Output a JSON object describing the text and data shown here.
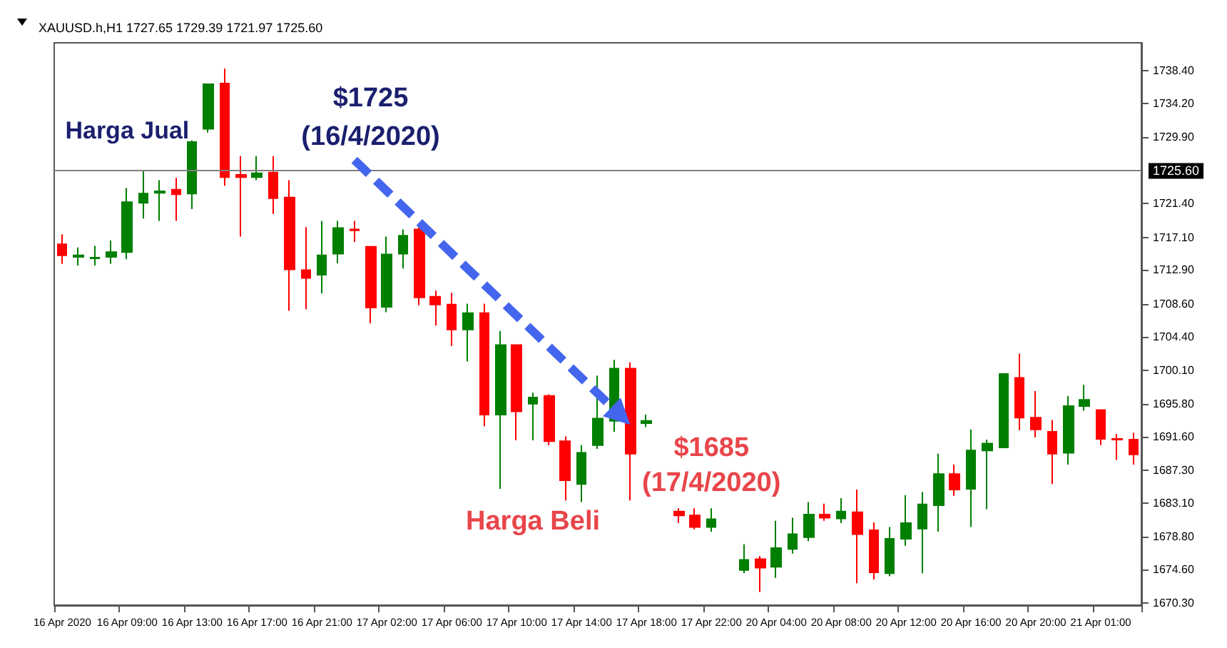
{
  "chart_data": {
    "type": "candlestick",
    "title": "XAUUSD.h,H1 1727.65 1729.39 1721.97 1725.60",
    "categories": [
      "16 Apr 2020",
      null,
      null,
      null,
      "16 Apr 09:00",
      null,
      null,
      null,
      "16 Apr 13:00",
      null,
      null,
      null,
      "16 Apr 17:00",
      null,
      null,
      null,
      "16 Apr 21:00",
      null,
      null,
      null,
      "17 Apr 02:00",
      null,
      null,
      null,
      "17 Apr 06:00",
      null,
      null,
      null,
      "17 Apr 10:00",
      null,
      null,
      null,
      "17 Apr 14:00",
      null,
      null,
      null,
      "17 Apr 18:00",
      null,
      null,
      null,
      "17 Apr 22:00",
      null,
      null,
      null,
      "20 Apr 04:00",
      null,
      null,
      null,
      "20 Apr 08:00",
      null,
      null,
      null,
      "20 Apr 12:00",
      null,
      null,
      null,
      "20 Apr 16:00",
      null,
      null,
      null,
      "20 Apr 20:00",
      null,
      null,
      null,
      "21 Apr 01:00",
      null,
      null
    ],
    "ohlc": [
      [
        1716.2,
        1717.5,
        1713.7,
        1714.8
      ],
      [
        1714.6,
        1715.8,
        1713.5,
        1714.8
      ],
      [
        1714.4,
        1716.0,
        1713.5,
        1714.5
      ],
      [
        1714.6,
        1716.7,
        1713.7,
        1715.2
      ],
      [
        1715.2,
        1723.4,
        1714.3,
        1721.6
      ],
      [
        1721.5,
        1725.7,
        1719.5,
        1722.7
      ],
      [
        1722.8,
        1724.4,
        1719.2,
        1723.0
      ],
      [
        1723.2,
        1724.7,
        1719.2,
        1722.6
      ],
      [
        1722.7,
        1729.5,
        1720.7,
        1729.3
      ],
      [
        1731.0,
        1736.8,
        1730.5,
        1736.7
      ],
      [
        1736.8,
        1738.7,
        1723.7,
        1724.8
      ],
      [
        1725.1,
        1727.5,
        1717.2,
        1724.8
      ],
      [
        1724.8,
        1727.5,
        1724.4,
        1725.3
      ],
      [
        1725.4,
        1727.5,
        1720.1,
        1722.1
      ],
      [
        1722.2,
        1724.4,
        1707.7,
        1713.0
      ],
      [
        1712.9,
        1718.4,
        1707.9,
        1711.9
      ],
      [
        1712.3,
        1719.2,
        1709.9,
        1714.8
      ],
      [
        1715.0,
        1719.2,
        1713.8,
        1718.3
      ],
      [
        1718.1,
        1719.2,
        1716.5,
        1718.0
      ],
      [
        1715.9,
        1716.0,
        1706.1,
        1708.1
      ],
      [
        1708.2,
        1717.2,
        1707.5,
        1714.9
      ],
      [
        1715.0,
        1718.1,
        1713.1,
        1717.3
      ],
      [
        1718.1,
        1718.4,
        1708.4,
        1709.4
      ],
      [
        1709.5,
        1710.3,
        1705.8,
        1708.5
      ],
      [
        1708.5,
        1710.0,
        1703.2,
        1705.3
      ],
      [
        1705.3,
        1708.6,
        1701.2,
        1707.4
      ],
      [
        1707.4,
        1708.6,
        1692.9,
        1694.4
      ],
      [
        1694.4,
        1705.1,
        1684.9,
        1703.3
      ],
      [
        1703.3,
        1703.3,
        1691.1,
        1694.8
      ],
      [
        1695.8,
        1697.2,
        1691.1,
        1696.6
      ],
      [
        1696.8,
        1697.0,
        1690.5,
        1691.0
      ],
      [
        1691.0,
        1691.6,
        1683.4,
        1686.0
      ],
      [
        1685.5,
        1690.5,
        1683.2,
        1689.5
      ],
      [
        1690.5,
        1699.4,
        1690.0,
        1693.9
      ],
      [
        1693.6,
        1701.4,
        1692.2,
        1700.3
      ],
      [
        1700.3,
        1701.1,
        1683.4,
        1689.4
      ],
      [
        1693.3,
        1694.4,
        1692.8,
        1693.6
      ],
      null,
      [
        1682.0,
        1682.4,
        1680.5,
        1681.5
      ],
      [
        1681.5,
        1682.4,
        1679.7,
        1680.0
      ],
      [
        1680.0,
        1682.4,
        1679.4,
        1681.0
      ],
      null,
      [
        1674.5,
        1677.8,
        1674.1,
        1675.8
      ],
      [
        1675.9,
        1676.3,
        1671.7,
        1674.8
      ],
      [
        1674.9,
        1680.8,
        1673.5,
        1677.3
      ],
      [
        1677.2,
        1681.2,
        1676.6,
        1679.1
      ],
      [
        1678.7,
        1683.2,
        1678.2,
        1681.6
      ],
      [
        1681.6,
        1683.0,
        1680.8,
        1681.2
      ],
      [
        1681.1,
        1683.7,
        1680.5,
        1682.0
      ],
      [
        1681.9,
        1684.8,
        1672.8,
        1679.1
      ],
      [
        1679.6,
        1680.6,
        1673.3,
        1674.2
      ],
      [
        1674.1,
        1680.0,
        1673.7,
        1678.5
      ],
      [
        1678.5,
        1684.1,
        1677.6,
        1680.5
      ],
      [
        1679.8,
        1684.5,
        1674.1,
        1682.9
      ],
      [
        1682.8,
        1689.4,
        1679.4,
        1686.8
      ],
      [
        1686.8,
        1688.0,
        1684.0,
        1684.8
      ],
      [
        1684.9,
        1692.5,
        1680.0,
        1689.8
      ],
      [
        1689.8,
        1691.2,
        1682.3,
        1690.7
      ],
      [
        1690.2,
        1699.7,
        1690.1,
        1699.6
      ],
      [
        1699.1,
        1702.2,
        1692.4,
        1694.0
      ],
      [
        1694.0,
        1697.4,
        1691.5,
        1692.5
      ],
      [
        1692.2,
        1693.7,
        1685.5,
        1689.4
      ],
      [
        1689.5,
        1696.8,
        1688.0,
        1695.5
      ],
      [
        1695.5,
        1698.2,
        1694.9,
        1696.3
      ],
      [
        1695.0,
        1695.0,
        1690.5,
        1691.3
      ],
      [
        1691.3,
        1691.9,
        1688.6,
        1691.2
      ],
      [
        1691.2,
        1692.1,
        1688.0,
        1689.3
      ]
    ],
    "ylim": [
      1670,
      1742
    ],
    "yticks": [
      {
        "value": 1670.3,
        "label": "1670.30"
      },
      {
        "value": 1674.6,
        "label": "1674.60"
      },
      {
        "value": 1678.8,
        "label": "1678.80"
      },
      {
        "value": 1683.1,
        "label": "1683.10"
      },
      {
        "value": 1687.3,
        "label": "1687.30"
      },
      {
        "value": 1691.6,
        "label": "1691.60"
      },
      {
        "value": 1695.8,
        "label": "1695.80"
      },
      {
        "value": 1700.1,
        "label": "1700.10"
      },
      {
        "value": 1704.4,
        "label": "1704.40"
      },
      {
        "value": 1708.6,
        "label": "1708.60"
      },
      {
        "value": 1712.9,
        "label": "1712.90"
      },
      {
        "value": 1717.1,
        "label": "1717.10"
      },
      {
        "value": 1721.4,
        "label": "1721.40"
      },
      {
        "value": 1729.9,
        "label": "1729.90"
      },
      {
        "value": 1734.2,
        "label": "1734.20"
      },
      {
        "value": 1738.4,
        "label": "1738.40"
      }
    ],
    "ref_lines": [
      {
        "axis": "y",
        "value": 1725.6,
        "label": "1725.60",
        "color": "#808080"
      }
    ],
    "annotations": [
      "Harga Jual",
      "$1725",
      "(16/4/2020)",
      "Harga Beli",
      "$1685",
      "(17/4/2020)"
    ],
    "grid": false
  }
}
